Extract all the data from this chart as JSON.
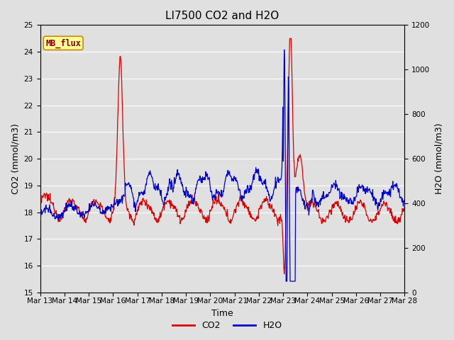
{
  "title": "LI7500 CO2 and H2O",
  "xlabel": "Time",
  "ylabel_left": "CO2 (mmol/m3)",
  "ylabel_right": "H2O (mmol/m3)",
  "co2_ylim": [
    15.0,
    25.0
  ],
  "h2o_ylim": [
    0,
    1200
  ],
  "co2_yticks": [
    15.0,
    16.0,
    17.0,
    18.0,
    19.0,
    20.0,
    21.0,
    22.0,
    23.0,
    24.0,
    25.0
  ],
  "h2o_yticks": [
    0,
    200,
    400,
    600,
    800,
    1000,
    1200
  ],
  "background_color": "#e0e0e0",
  "grid_color": "#ffffff",
  "co2_color": "#dd0000",
  "h2o_color": "#0000cc",
  "annotation_text": "MB_flux",
  "annotation_bg": "#ffff99",
  "annotation_border": "#cc8800",
  "annotation_text_color": "#880000",
  "legend_co2": "CO2",
  "legend_h2o": "H2O",
  "num_points": 800,
  "xtick_labels": [
    "Mar 13",
    "Mar 14",
    "Mar 15",
    "Mar 16",
    "Mar 17",
    "Mar 18",
    "Mar 19",
    "Mar 20",
    "Mar 21",
    "Mar 22",
    "Mar 23",
    "Mar 24",
    "Mar 25",
    "Mar 26",
    "Mar 27",
    "Mar 28"
  ],
  "title_fontsize": 11,
  "axis_label_fontsize": 9,
  "tick_fontsize": 7.5
}
